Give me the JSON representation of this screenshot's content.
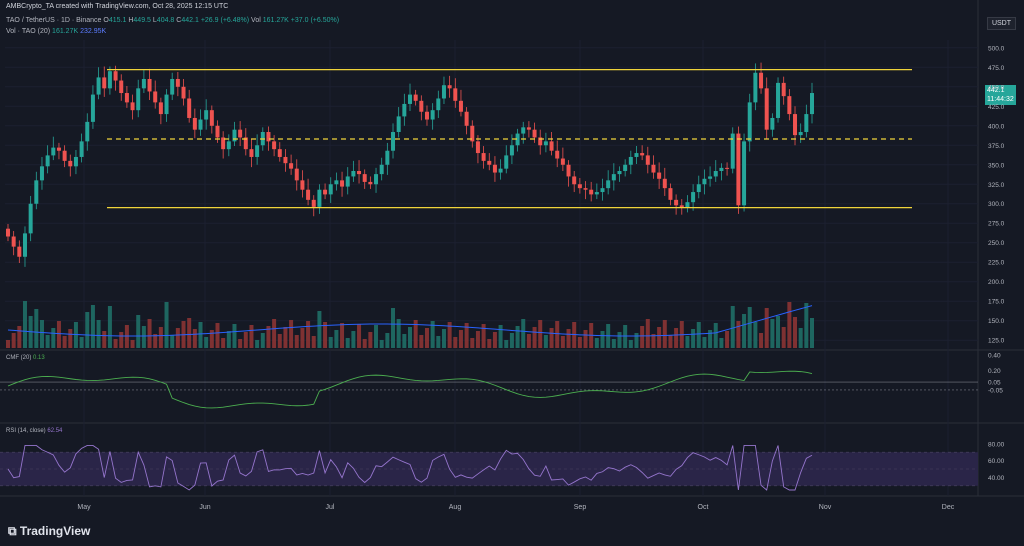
{
  "header": {
    "attribution": "AMBCrypto_TA created with TradingView.com, Oct 28, 2025 12:15 UTC",
    "symbol": "TAO / TetherUS · 1D · Binance",
    "ohlc": {
      "o_label": "O",
      "o": "415.1",
      "h_label": "H",
      "h": "449.5",
      "l_label": "L",
      "l": "404.8",
      "c_label": "C",
      "c": "442.1",
      "change": "+26.9 (+6.48%)",
      "vol_label": "Vol",
      "vol": "161.27K",
      "vol_change": "+37.0 (+6.50%)"
    },
    "volume_line": {
      "label": "Vol · TAO (20)",
      "v1": "161.27K",
      "v2": "232.95K"
    }
  },
  "currency_button": "USDT",
  "price_tag": {
    "price": "442.1",
    "countdown": "11:44:32"
  },
  "indicators": {
    "cmf": {
      "label": "CMF (20)",
      "value": "0.13",
      "levels": [
        "0.40",
        "0.20",
        "0.05",
        "-0.05"
      ]
    },
    "rsi": {
      "label": "RSI (14, close)",
      "value": "62.54",
      "levels": [
        "80.00",
        "60.00",
        "40.00"
      ]
    }
  },
  "footer": {
    "brand": "TradingView"
  },
  "colors": {
    "background": "#151924",
    "up": "#26a69a",
    "down": "#ef5350",
    "level": "#f0d43a",
    "cmf": "#4caf50",
    "rsi": "#9575cd",
    "vol_ma": "#2962ff"
  },
  "chart_data": {
    "type": "candlestick",
    "title": "TAO / TetherUS · 1D · Binance",
    "x_ticks": [
      "May",
      "Jun",
      "Jul",
      "Aug",
      "Sep",
      "Oct",
      "Nov",
      "Dec"
    ],
    "y_ticks": [
      "500.0",
      "475.0",
      "450.0",
      "425.0",
      "400.0",
      "375.0",
      "350.0",
      "325.0",
      "300.0",
      "275.0",
      "250.0",
      "225.0",
      "200.0",
      "175.0",
      "150.0",
      "125.0"
    ],
    "ylim": [
      115,
      510
    ],
    "horizontal_levels": [
      {
        "value": 472,
        "style": "solid"
      },
      {
        "value": 383,
        "style": "dashed"
      },
      {
        "value": 295,
        "style": "solid"
      }
    ],
    "close_series": [
      258,
      245,
      232,
      262,
      300,
      330,
      348,
      362,
      372,
      368,
      355,
      348,
      360,
      380,
      405,
      440,
      462,
      448,
      470,
      458,
      442,
      430,
      420,
      448,
      460,
      444,
      430,
      415,
      440,
      460,
      450,
      435,
      410,
      395,
      408,
      420,
      400,
      385,
      370,
      380,
      395,
      385,
      370,
      360,
      375,
      392,
      380,
      370,
      360,
      352,
      345,
      330,
      318,
      305,
      296,
      318,
      312,
      325,
      330,
      322,
      335,
      342,
      338,
      328,
      325,
      338,
      350,
      368,
      392,
      412,
      428,
      440,
      432,
      418,
      408,
      420,
      435,
      452,
      448,
      432,
      418,
      400,
      380,
      365,
      355,
      350,
      340,
      345,
      362,
      375,
      390,
      398,
      395,
      385,
      375,
      380,
      368,
      358,
      350,
      335,
      325,
      320,
      318,
      312,
      315,
      320,
      330,
      338,
      342,
      350,
      360,
      365,
      362,
      350,
      340,
      332,
      320,
      305,
      298,
      295,
      302,
      315,
      325,
      332,
      335,
      342,
      346,
      345,
      390,
      298,
      380,
      430,
      468,
      448,
      395,
      410,
      455,
      438,
      415,
      388,
      392,
      415,
      442
    ]
  }
}
